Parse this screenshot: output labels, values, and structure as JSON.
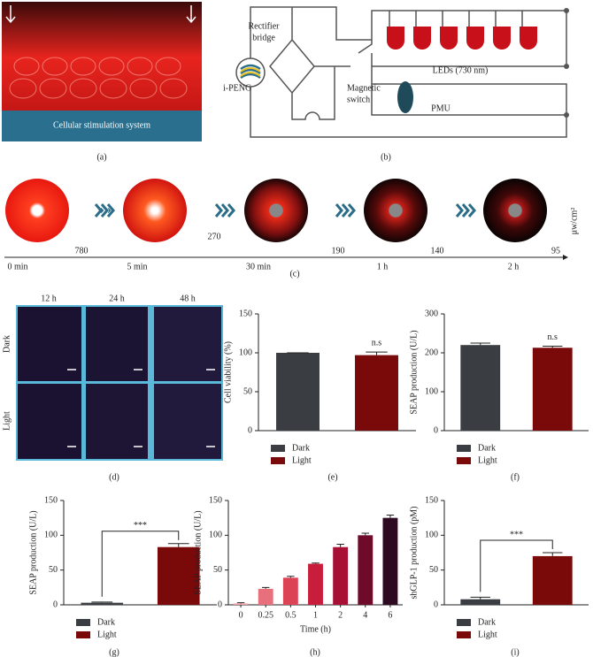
{
  "panel_labels": [
    "(a)",
    "(b)",
    "(c)",
    "(d)",
    "(e)",
    "(f)",
    "(g)",
    "(h)",
    "(i)"
  ],
  "photo": {
    "caption": "Cellular stimulation system"
  },
  "circuit": {
    "rectifier": [
      "Rectifier",
      "bridge"
    ],
    "source": "i-PENG",
    "switch": [
      "Magnetic",
      "switch"
    ],
    "leds": "LEDs (730 nm)",
    "pmu": "PMU"
  },
  "intensity": {
    "unit": "μw/cm²",
    "times": [
      "0 min",
      "5 min",
      "30 min",
      "1 h",
      "2 h"
    ],
    "values": [
      780,
      270,
      190,
      140,
      95
    ]
  },
  "microscopy": {
    "columns": [
      "12 h",
      "24 h",
      "48 h"
    ],
    "rows": [
      "Dark",
      "Light"
    ]
  },
  "chart_data": [
    {
      "type": "bar",
      "ylabel": "Cell viability (%)",
      "ylim": [
        0,
        150
      ],
      "yticks": [
        0,
        50,
        100,
        150
      ],
      "categories": [
        "Dark",
        "Light"
      ],
      "values": [
        100,
        97
      ],
      "errors": [
        0,
        4
      ],
      "colors": [
        "#3a3d42",
        "#7a0a0a"
      ],
      "annotation": "n.s"
    },
    {
      "type": "bar",
      "ylabel": "SEAP production (U/L)",
      "ylim": [
        0,
        300
      ],
      "yticks": [
        0,
        100,
        200,
        300
      ],
      "categories": [
        "Dark",
        "Light"
      ],
      "values": [
        220,
        213
      ],
      "errors": [
        5,
        4
      ],
      "colors": [
        "#3a3d42",
        "#7a0a0a"
      ],
      "annotation": "n.s"
    },
    {
      "type": "bar",
      "ylabel": "SEAP production (U/L)",
      "ylim": [
        0,
        150
      ],
      "yticks": [
        0,
        50,
        100,
        150
      ],
      "categories": [
        "Dark",
        "Light"
      ],
      "values": [
        3,
        83
      ],
      "errors": [
        1,
        5
      ],
      "colors": [
        "#3a3d42",
        "#7a0a0a"
      ],
      "annotation": "***",
      "significance_bracket": true
    },
    {
      "type": "bar",
      "ylabel": "SEAP production (U/L)",
      "xlabel": "Time (h)",
      "ylim": [
        0,
        150
      ],
      "yticks": [
        0,
        50,
        100,
        150
      ],
      "categories": [
        "0",
        "0.25",
        "0.5",
        "1",
        "2",
        "4",
        "6"
      ],
      "values": [
        2,
        23,
        39,
        59,
        83,
        100,
        125
      ],
      "errors": [
        1,
        2,
        2,
        1,
        4,
        3,
        4
      ],
      "colors": [
        "#f2a0a8",
        "#e8707c",
        "#dc4456",
        "#c81e3c",
        "#a80f34",
        "#6e0a2a",
        "#2e0a22"
      ]
    },
    {
      "type": "bar",
      "ylabel": "shGLP-1 production (pM)",
      "ylim": [
        0,
        150
      ],
      "yticks": [
        0,
        50,
        100,
        150
      ],
      "categories": [
        "Dark",
        "Light"
      ],
      "values": [
        8,
        70
      ],
      "errors": [
        3,
        5
      ],
      "colors": [
        "#3a3d42",
        "#7a0a0a"
      ],
      "annotation": "***",
      "significance_bracket": true
    }
  ]
}
